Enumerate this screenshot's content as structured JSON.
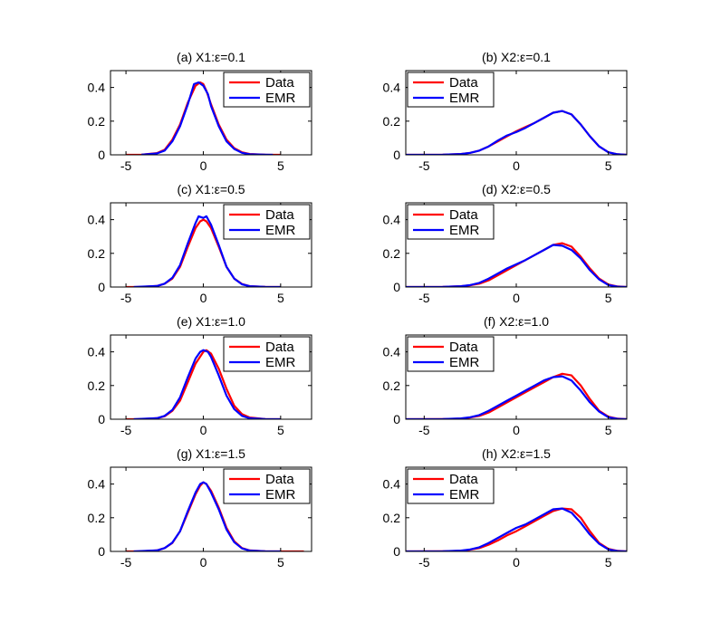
{
  "figure": {
    "legend_placement": "top-right",
    "series_colors": {
      "Data": "#ff0000",
      "EMR": "#0000ff"
    }
  },
  "chart_data": [
    {
      "type": "line",
      "title": "(a) X1:ε=0.1",
      "xlim": [
        -6,
        7
      ],
      "ylim": [
        0,
        0.5
      ],
      "xticks": [
        -5,
        0,
        5
      ],
      "yticks": [
        0,
        0.2,
        0.4
      ],
      "legend": [
        "Data",
        "EMR"
      ],
      "series": [
        {
          "name": "Data",
          "color": "#ff0000",
          "x": [
            -5,
            -4,
            -3,
            -2.5,
            -2,
            -1.5,
            -1,
            -0.5,
            -0.2,
            0,
            0.2,
            0.5,
            1,
            1.5,
            2,
            2.5,
            3,
            4,
            5
          ],
          "y": [
            0,
            0.001,
            0.01,
            0.03,
            0.09,
            0.18,
            0.31,
            0.41,
            0.43,
            0.42,
            0.38,
            0.3,
            0.18,
            0.09,
            0.04,
            0.015,
            0.005,
            0.001,
            0
          ]
        },
        {
          "name": "EMR",
          "color": "#0000ff",
          "x": [
            -4,
            -3,
            -2.5,
            -2,
            -1.5,
            -1,
            -0.6,
            -0.3,
            0,
            0.3,
            0.5,
            1,
            1.5,
            2,
            2.5,
            3,
            4,
            4.5
          ],
          "y": [
            0.001,
            0.008,
            0.025,
            0.08,
            0.17,
            0.3,
            0.42,
            0.43,
            0.41,
            0.36,
            0.29,
            0.17,
            0.08,
            0.035,
            0.012,
            0.004,
            0.001,
            0
          ]
        }
      ]
    },
    {
      "type": "line",
      "title": "(b) X2:ε=0.1",
      "xlim": [
        -6,
        6
      ],
      "ylim": [
        0,
        0.5
      ],
      "xticks": [
        -5,
        0,
        5
      ],
      "yticks": [
        0,
        0.2,
        0.4
      ],
      "legend": [
        "Data",
        "EMR"
      ],
      "series": [
        {
          "name": "Data",
          "color": "#ff0000",
          "x": [
            -6,
            -4,
            -3,
            -2.5,
            -2,
            -1.5,
            -1,
            -0.5,
            0,
            0.5,
            1,
            1.5,
            2,
            2.5,
            3,
            3.5,
            4,
            4.5,
            5,
            5.5,
            6
          ],
          "y": [
            0,
            0.001,
            0.005,
            0.012,
            0.025,
            0.05,
            0.08,
            0.11,
            0.14,
            0.165,
            0.19,
            0.22,
            0.25,
            0.26,
            0.24,
            0.18,
            0.11,
            0.05,
            0.015,
            0.003,
            0
          ]
        },
        {
          "name": "EMR",
          "color": "#0000ff",
          "x": [
            -6,
            -4,
            -3,
            -2.5,
            -2,
            -1.5,
            -1,
            -0.5,
            0,
            0.5,
            1,
            1.5,
            2,
            2.5,
            3,
            3.5,
            4,
            4.5,
            5,
            5.5,
            6
          ],
          "y": [
            0,
            0.001,
            0.005,
            0.012,
            0.025,
            0.05,
            0.085,
            0.115,
            0.135,
            0.16,
            0.19,
            0.22,
            0.25,
            0.26,
            0.24,
            0.18,
            0.11,
            0.05,
            0.015,
            0.003,
            0
          ]
        }
      ]
    },
    {
      "type": "line",
      "title": "(c) X1:ε=0.5",
      "xlim": [
        -6,
        7
      ],
      "ylim": [
        0,
        0.5
      ],
      "xticks": [
        -5,
        0,
        5
      ],
      "yticks": [
        0,
        0.2,
        0.4
      ],
      "legend": [
        "Data",
        "EMR"
      ],
      "series": [
        {
          "name": "Data",
          "color": "#ff0000",
          "x": [
            -5,
            -4,
            -3,
            -2.5,
            -2,
            -1.5,
            -1,
            -0.5,
            -0.2,
            0,
            0.2,
            0.5,
            1,
            1.5,
            2,
            2.5,
            3,
            4,
            5
          ],
          "y": [
            0,
            0.001,
            0.006,
            0.02,
            0.05,
            0.12,
            0.24,
            0.35,
            0.39,
            0.4,
            0.39,
            0.35,
            0.24,
            0.12,
            0.05,
            0.018,
            0.005,
            0.001,
            0
          ]
        },
        {
          "name": "EMR",
          "color": "#0000ff",
          "x": [
            -4.5,
            -3,
            -2.5,
            -2,
            -1.5,
            -1,
            -0.5,
            -0.3,
            0,
            0.2,
            0.5,
            1,
            1.5,
            2,
            2.5,
            3,
            4,
            5
          ],
          "y": [
            0,
            0.006,
            0.02,
            0.055,
            0.13,
            0.26,
            0.38,
            0.42,
            0.41,
            0.42,
            0.37,
            0.25,
            0.12,
            0.05,
            0.016,
            0.005,
            0.001,
            0
          ]
        }
      ]
    },
    {
      "type": "line",
      "title": "(d) X2:ε=0.5",
      "xlim": [
        -6,
        6
      ],
      "ylim": [
        0,
        0.5
      ],
      "xticks": [
        -5,
        0,
        5
      ],
      "yticks": [
        0,
        0.2,
        0.4
      ],
      "legend": [
        "Data",
        "EMR"
      ],
      "series": [
        {
          "name": "Data",
          "color": "#ff0000",
          "x": [
            -6,
            -4,
            -3,
            -2.5,
            -2,
            -1.5,
            -1,
            -0.5,
            0,
            0.5,
            1,
            1.5,
            2,
            2.5,
            3,
            3.5,
            4,
            4.5,
            5,
            5.5,
            6
          ],
          "y": [
            0,
            0.001,
            0.005,
            0.01,
            0.02,
            0.04,
            0.07,
            0.1,
            0.13,
            0.16,
            0.19,
            0.22,
            0.25,
            0.26,
            0.24,
            0.18,
            0.11,
            0.05,
            0.015,
            0.003,
            0
          ]
        },
        {
          "name": "EMR",
          "color": "#0000ff",
          "x": [
            -6,
            -4,
            -3,
            -2.5,
            -2,
            -1.5,
            -1,
            -0.5,
            0,
            0.5,
            1,
            1.5,
            2,
            2.5,
            3,
            3.5,
            4,
            4.5,
            5,
            5.5,
            6
          ],
          "y": [
            0,
            0.001,
            0.005,
            0.012,
            0.025,
            0.05,
            0.08,
            0.11,
            0.135,
            0.16,
            0.19,
            0.22,
            0.25,
            0.245,
            0.22,
            0.17,
            0.1,
            0.045,
            0.012,
            0.002,
            0
          ]
        }
      ]
    },
    {
      "type": "line",
      "title": "(e) X1:ε=1.0",
      "xlim": [
        -6,
        7
      ],
      "ylim": [
        0,
        0.5
      ],
      "xticks": [
        -5,
        0,
        5
      ],
      "yticks": [
        0,
        0.2,
        0.4
      ],
      "legend": [
        "Data",
        "EMR"
      ],
      "series": [
        {
          "name": "Data",
          "color": "#ff0000",
          "x": [
            -5,
            -4,
            -3,
            -2.5,
            -2,
            -1.5,
            -1,
            -0.5,
            0,
            0.2,
            0.5,
            1,
            1.5,
            2,
            2.5,
            3,
            4,
            5
          ],
          "y": [
            0,
            0.001,
            0.006,
            0.018,
            0.05,
            0.11,
            0.22,
            0.33,
            0.4,
            0.41,
            0.39,
            0.3,
            0.18,
            0.08,
            0.03,
            0.01,
            0.001,
            0
          ]
        },
        {
          "name": "EMR",
          "color": "#0000ff",
          "x": [
            -4.5,
            -3,
            -2.5,
            -2,
            -1.5,
            -1,
            -0.5,
            -0.2,
            0,
            0.3,
            0.5,
            1,
            1.5,
            2,
            2.5,
            3,
            4,
            5
          ],
          "y": [
            0,
            0.006,
            0.02,
            0.055,
            0.13,
            0.25,
            0.36,
            0.4,
            0.41,
            0.4,
            0.37,
            0.26,
            0.14,
            0.06,
            0.02,
            0.006,
            0.001,
            0
          ]
        }
      ]
    },
    {
      "type": "line",
      "title": "(f) X2:ε=1.0",
      "xlim": [
        -6,
        6
      ],
      "ylim": [
        0,
        0.5
      ],
      "xticks": [
        -5,
        0,
        5
      ],
      "yticks": [
        0,
        0.2,
        0.4
      ],
      "legend": [
        "Data",
        "EMR"
      ],
      "series": [
        {
          "name": "Data",
          "color": "#ff0000",
          "x": [
            -6,
            -4,
            -3,
            -2.5,
            -2,
            -1.5,
            -1,
            -0.5,
            0,
            0.5,
            1,
            1.5,
            2,
            2.5,
            3,
            3.5,
            4,
            4.5,
            5,
            5.5,
            6
          ],
          "y": [
            0,
            0.001,
            0.004,
            0.01,
            0.02,
            0.04,
            0.07,
            0.1,
            0.13,
            0.16,
            0.19,
            0.22,
            0.25,
            0.27,
            0.26,
            0.2,
            0.12,
            0.05,
            0.015,
            0.003,
            0
          ]
        },
        {
          "name": "EMR",
          "color": "#0000ff",
          "x": [
            -6,
            -4,
            -3,
            -2.5,
            -2,
            -1.5,
            -1,
            -0.5,
            0,
            0.5,
            1,
            1.5,
            2,
            2.5,
            3,
            3.5,
            4,
            4.5,
            5,
            5.5,
            6
          ],
          "y": [
            0,
            0.001,
            0.005,
            0.012,
            0.025,
            0.05,
            0.08,
            0.11,
            0.14,
            0.17,
            0.2,
            0.23,
            0.25,
            0.255,
            0.23,
            0.17,
            0.1,
            0.045,
            0.012,
            0.002,
            0
          ]
        }
      ]
    },
    {
      "type": "line",
      "title": "(g) X1:ε=1.5",
      "xlim": [
        -6,
        7
      ],
      "ylim": [
        0,
        0.5
      ],
      "xticks": [
        -5,
        0,
        5
      ],
      "yticks": [
        0,
        0.2,
        0.4
      ],
      "legend": [
        "Data",
        "EMR"
      ],
      "series": [
        {
          "name": "Data",
          "color": "#ff0000",
          "x": [
            -5,
            -4,
            -3,
            -2.5,
            -2,
            -1.5,
            -1,
            -0.5,
            -0.2,
            0,
            0.2,
            0.5,
            1,
            1.5,
            2,
            2.5,
            3,
            4,
            5,
            6.5
          ],
          "y": [
            0,
            0.001,
            0.006,
            0.02,
            0.05,
            0.12,
            0.23,
            0.34,
            0.39,
            0.41,
            0.4,
            0.36,
            0.26,
            0.14,
            0.06,
            0.02,
            0.006,
            0.001,
            0,
            0
          ]
        },
        {
          "name": "EMR",
          "color": "#0000ff",
          "x": [
            -4.5,
            -3,
            -2.5,
            -2,
            -1.5,
            -1,
            -0.5,
            -0.2,
            0,
            0.2,
            0.5,
            1,
            1.5,
            2,
            2.5,
            3,
            4,
            5
          ],
          "y": [
            0,
            0.006,
            0.02,
            0.052,
            0.12,
            0.24,
            0.35,
            0.4,
            0.41,
            0.4,
            0.35,
            0.25,
            0.13,
            0.055,
            0.018,
            0.005,
            0.001,
            0
          ]
        }
      ]
    },
    {
      "type": "line",
      "title": "(h) X2:ε=1.5",
      "xlim": [
        -6,
        6
      ],
      "ylim": [
        0,
        0.5
      ],
      "xticks": [
        -5,
        0,
        5
      ],
      "yticks": [
        0,
        0.2,
        0.4
      ],
      "legend": [
        "Data",
        "EMR"
      ],
      "series": [
        {
          "name": "Data",
          "color": "#ff0000",
          "x": [
            -6,
            -4,
            -3,
            -2.5,
            -2,
            -1.5,
            -1,
            -0.5,
            0,
            0.5,
            1,
            1.5,
            2,
            2.5,
            3,
            3.5,
            4,
            4.5,
            5,
            5.5,
            6
          ],
          "y": [
            0,
            0.001,
            0.004,
            0.01,
            0.02,
            0.04,
            0.065,
            0.095,
            0.12,
            0.15,
            0.18,
            0.21,
            0.24,
            0.255,
            0.25,
            0.2,
            0.12,
            0.05,
            0.015,
            0.003,
            0
          ]
        },
        {
          "name": "EMR",
          "color": "#0000ff",
          "x": [
            -6,
            -4,
            -3,
            -2.5,
            -2,
            -1.5,
            -1,
            -0.5,
            0,
            0.5,
            1,
            1.5,
            2,
            2.5,
            3,
            3.5,
            4,
            4.5,
            5,
            5.5,
            6
          ],
          "y": [
            0,
            0.001,
            0.005,
            0.012,
            0.025,
            0.05,
            0.08,
            0.11,
            0.14,
            0.16,
            0.19,
            0.22,
            0.25,
            0.255,
            0.23,
            0.17,
            0.1,
            0.045,
            0.012,
            0.002,
            0
          ]
        }
      ]
    }
  ]
}
